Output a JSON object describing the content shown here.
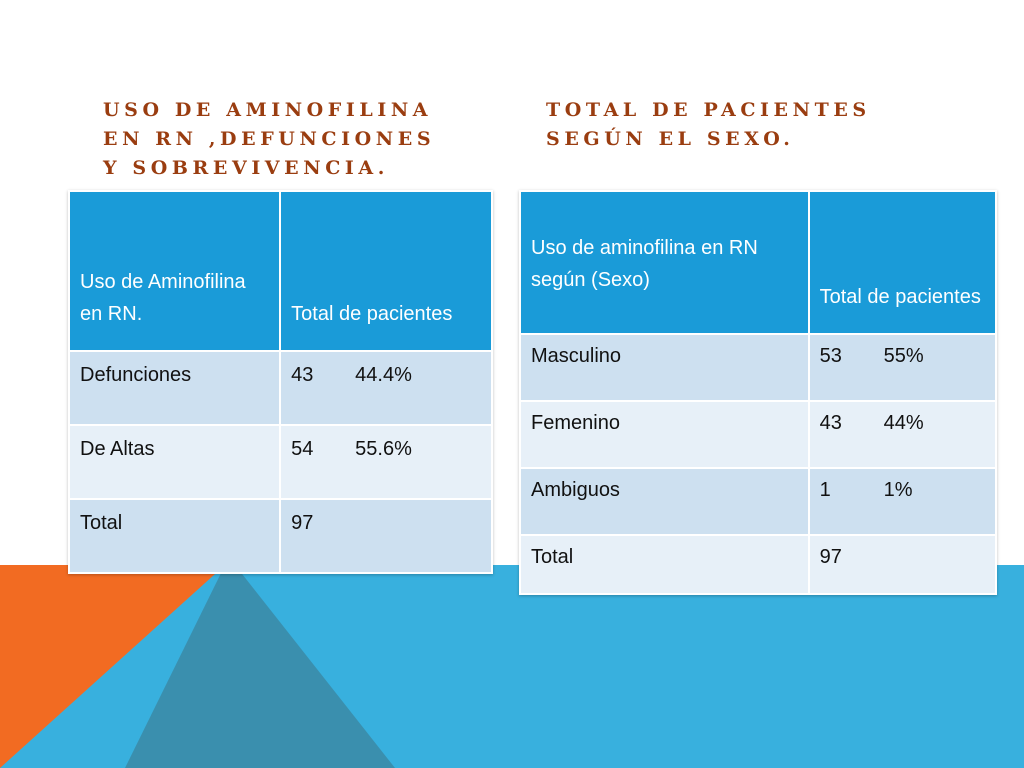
{
  "heading_left": {
    "line1": "Uso de aminofilina",
    "line2": "en RN ,defunciones",
    "line3": "y sobrevivencia."
  },
  "heading_right": {
    "line1": "Total de pacientes",
    "line2": "según el sexo."
  },
  "table_left": {
    "header_col1": "Uso de Aminofilina en RN.",
    "header_col2": "Total de pacientes",
    "rows": [
      {
        "label": "Defunciones",
        "count": "43",
        "percent": "44.4%"
      },
      {
        "label": "De Altas",
        "count": "54",
        "percent": "55.6%"
      },
      {
        "label": "Total",
        "count": "97",
        "percent": ""
      }
    ]
  },
  "table_right": {
    "header_col1": "Uso de aminofilina en RN según (Sexo)",
    "header_col2": "Total de pacientes",
    "rows": [
      {
        "label": "Masculino",
        "count": "53",
        "percent": "55%"
      },
      {
        "label": "Femenino",
        "count": "43",
        "percent": "44%"
      },
      {
        "label": "Ambiguos",
        "count": "1",
        "percent": "1%"
      },
      {
        "label": "Total",
        "count": "97",
        "percent": ""
      }
    ]
  },
  "colors": {
    "heading": "#9a3d10",
    "table_header": "#1a9bd8",
    "row_dark": "#cde0f0",
    "row_light": "#e7f0f8",
    "orange_band": "#f26b22",
    "blue_band": "#38b0de",
    "teal_triangle": "#3a8fae"
  }
}
